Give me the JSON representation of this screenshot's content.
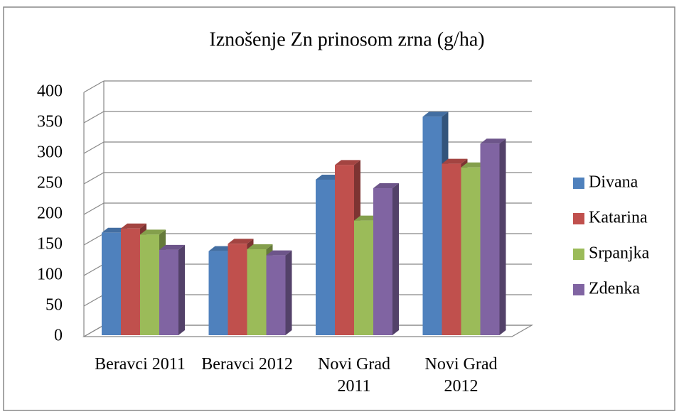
{
  "chart_data": {
    "type": "bar3d",
    "title": "Iznošenje Zn prinosom zrna (g/ha)",
    "categories": [
      "Beravci 2011",
      "Beravci 2012",
      "Novi Grad 2011",
      "Novi Grad 2012"
    ],
    "series": [
      {
        "name": "Divana",
        "color": "#4f81bd",
        "values": [
          170,
          140,
          257,
          360
        ]
      },
      {
        "name": "Katarina",
        "color": "#c0504d",
        "values": [
          177,
          152,
          281,
          283
        ]
      },
      {
        "name": "Srpanjka",
        "color": "#9bbb59",
        "values": [
          167,
          143,
          190,
          277
        ]
      },
      {
        "name": "Zdenka",
        "color": "#8064a2",
        "values": [
          142,
          133,
          243,
          316
        ]
      }
    ],
    "ylim": [
      0,
      400
    ],
    "yticks": [
      0,
      50,
      100,
      150,
      200,
      250,
      300,
      350,
      400
    ],
    "grid": true,
    "legend": "right"
  }
}
